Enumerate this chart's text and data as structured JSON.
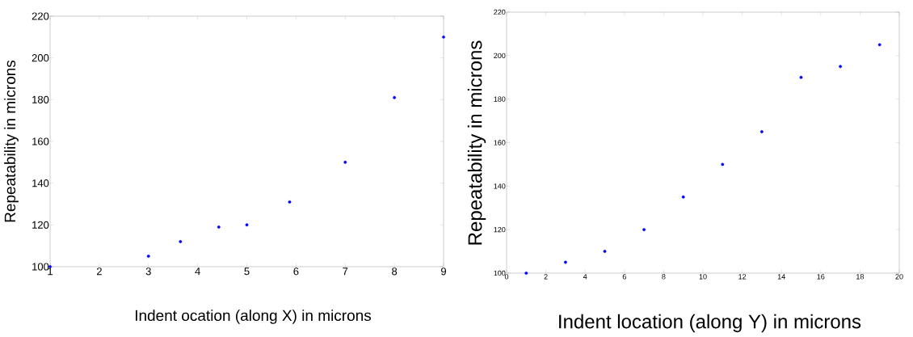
{
  "chart_data": [
    {
      "type": "scatter",
      "xlabel": "Indent  ocation (along X) in microns",
      "ylabel": "Repeatability in microns",
      "x": [
        1,
        3,
        3.65,
        4.43,
        5,
        5.87,
        7,
        8,
        9
      ],
      "values": [
        100,
        105,
        112,
        119,
        120,
        131,
        150,
        181,
        210
      ],
      "color": "#0000ff",
      "xlim": [
        1,
        9
      ],
      "ylim": [
        100,
        220
      ],
      "xticks": [
        1,
        2,
        3,
        4,
        5,
        6,
        7,
        8,
        9
      ],
      "yticks": [
        100,
        120,
        140,
        160,
        180,
        200,
        220
      ],
      "grid": false
    },
    {
      "type": "scatter",
      "xlabel": "Indent location (along Y) in microns",
      "ylabel": "Repeatability in microns",
      "x": [
        1,
        3,
        5,
        7,
        9,
        11,
        13,
        15,
        17,
        19
      ],
      "values": [
        100,
        105,
        110,
        120,
        135,
        150,
        165,
        190,
        195,
        205
      ],
      "color": "#0000ff",
      "xlim": [
        0,
        20
      ],
      "ylim": [
        100,
        220
      ],
      "xticks": [
        0,
        2,
        4,
        6,
        8,
        10,
        12,
        14,
        16,
        18,
        20
      ],
      "yticks": [
        100,
        120,
        140,
        160,
        180,
        200,
        220
      ],
      "grid": false
    }
  ]
}
